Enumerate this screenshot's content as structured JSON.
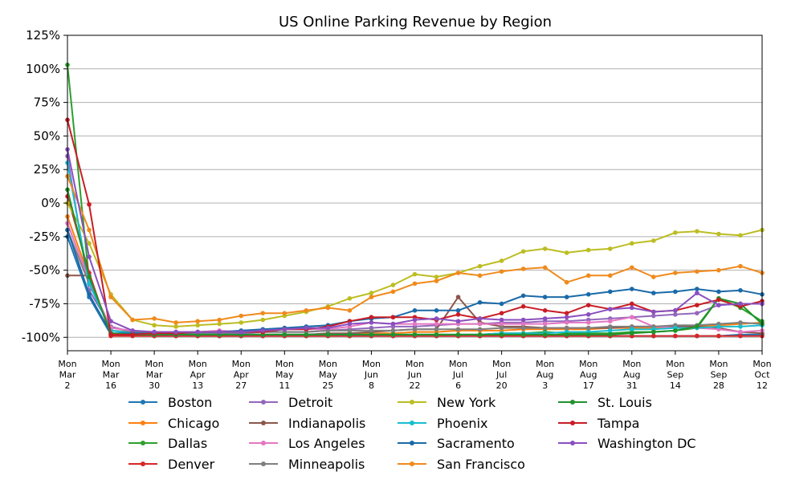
{
  "chart_data": {
    "type": "line",
    "title": "US Online Parking Revenue by Region",
    "xlabel": "",
    "ylabel": "",
    "ylim": [
      -110,
      125
    ],
    "yticks": [
      "125%",
      "100%",
      "75%",
      "50%",
      "25%",
      "0%",
      "-25%",
      "-50%",
      "-75%",
      "-100%"
    ],
    "ytick_values": [
      125,
      100,
      75,
      50,
      25,
      0,
      -25,
      -50,
      -75,
      -100
    ],
    "grid": "horizontal",
    "legend_position": "bottom",
    "xticks": [
      {
        "week": 0,
        "lines": [
          "Mon",
          "Mar",
          "2"
        ]
      },
      {
        "week": 2,
        "lines": [
          "Mon",
          "Mar",
          "16"
        ]
      },
      {
        "week": 4,
        "lines": [
          "Mon",
          "Mar",
          "30"
        ]
      },
      {
        "week": 6,
        "lines": [
          "Mon",
          "Apr",
          "13"
        ]
      },
      {
        "week": 8,
        "lines": [
          "Mon",
          "Apr",
          "27"
        ]
      },
      {
        "week": 10,
        "lines": [
          "Mon",
          "May",
          "11"
        ]
      },
      {
        "week": 12,
        "lines": [
          "Mon",
          "May",
          "25"
        ]
      },
      {
        "week": 14,
        "lines": [
          "Mon",
          "Jun",
          "8"
        ]
      },
      {
        "week": 16,
        "lines": [
          "Mon",
          "Jun",
          "22"
        ]
      },
      {
        "week": 18,
        "lines": [
          "Mon",
          "Jul",
          "6"
        ]
      },
      {
        "week": 20,
        "lines": [
          "Mon",
          "Jul",
          "20"
        ]
      },
      {
        "week": 22,
        "lines": [
          "Mon",
          "Aug",
          "3"
        ]
      },
      {
        "week": 24,
        "lines": [
          "Mon",
          "Aug",
          "17"
        ]
      },
      {
        "week": 26,
        "lines": [
          "Mon",
          "Aug",
          "31"
        ]
      },
      {
        "week": 28,
        "lines": [
          "Mon",
          "Sep",
          "14"
        ]
      },
      {
        "week": 30,
        "lines": [
          "Mon",
          "Sep",
          "28"
        ]
      },
      {
        "week": 32,
        "lines": [
          "Mon",
          "Oct",
          "12"
        ]
      }
    ],
    "x": [
      "2020-03-02",
      "2020-03-09",
      "2020-03-16",
      "2020-03-23",
      "2020-03-30",
      "2020-04-06",
      "2020-04-13",
      "2020-04-20",
      "2020-04-27",
      "2020-05-04",
      "2020-05-11",
      "2020-05-18",
      "2020-05-25",
      "2020-06-01",
      "2020-06-08",
      "2020-06-15",
      "2020-06-22",
      "2020-06-29",
      "2020-07-06",
      "2020-07-13",
      "2020-07-20",
      "2020-07-27",
      "2020-08-03",
      "2020-08-10",
      "2020-08-17",
      "2020-08-24",
      "2020-08-31",
      "2020-09-07",
      "2020-09-14",
      "2020-09-21",
      "2020-09-28",
      "2020-10-05",
      "2020-10-12"
    ],
    "series": [
      {
        "name": "Boston",
        "color": "#1f77b4",
        "values": [
          -25,
          -70,
          -98,
          -98,
          -99,
          -99,
          -99,
          -99,
          -99,
          -99,
          -99,
          -99,
          -99,
          -99,
          -99,
          -99,
          -99,
          -99,
          -99,
          -99,
          -99,
          -99,
          -99,
          -99,
          -99,
          -99,
          -99,
          -99,
          -99,
          -99,
          -99,
          -98,
          -98
        ]
      },
      {
        "name": "Chicago",
        "color": "#ff7f0e",
        "values": [
          -10,
          -55,
          -97,
          -98,
          -98,
          -98,
          -98,
          -98,
          -98,
          -98,
          -98,
          -98,
          -98,
          -97,
          -97,
          -97,
          -96,
          -96,
          -95,
          -95,
          -95,
          -94,
          -94,
          -94,
          -94,
          -93,
          -93,
          -93,
          -92,
          -92,
          -91,
          -90,
          -89
        ]
      },
      {
        "name": "Dallas",
        "color": "#2ca02c",
        "values": [
          103,
          -57,
          -97,
          -98,
          -98,
          -98,
          -98,
          -98,
          -98,
          -98,
          -98,
          -98,
          -98,
          -98,
          -98,
          -98,
          -98,
          -98,
          -98,
          -98,
          -97,
          -97,
          -96,
          -97,
          -97,
          -97,
          -96,
          -96,
          -95,
          -93,
          -71,
          -78,
          -88
        ]
      },
      {
        "name": "Denver",
        "color": "#d62728",
        "values": [
          5,
          -52,
          -99,
          -99,
          -99,
          -99,
          -99,
          -99,
          -99,
          -99,
          -99,
          -99,
          -99,
          -99,
          -99,
          -99,
          -99,
          -99,
          -99,
          -99,
          -99,
          -99,
          -99,
          -99,
          -99,
          -99,
          -99,
          -99,
          -99,
          -99,
          -99,
          -99,
          -99
        ]
      },
      {
        "name": "Detroit",
        "color": "#9467bd",
        "values": [
          35,
          -65,
          -92,
          -96,
          -97,
          -97,
          -97,
          -97,
          -97,
          -96,
          -96,
          -96,
          -95,
          -94,
          -93,
          -92,
          -92,
          -91,
          -90,
          -90,
          -89,
          -89,
          -88,
          -88,
          -87,
          -86,
          -85,
          -84,
          -83,
          -82,
          -76,
          -75,
          -75
        ]
      },
      {
        "name": "Indianapolis",
        "color": "#8c564b",
        "values": [
          -54,
          -54,
          -97,
          -98,
          -98,
          -98,
          -98,
          -98,
          -98,
          -98,
          -98,
          -98,
          -97,
          -97,
          -96,
          -95,
          -94,
          -94,
          -70,
          -89,
          -92,
          -92,
          -93,
          -93,
          -93,
          -93,
          -92,
          -92,
          -92,
          -92,
          -93,
          -96,
          -97
        ]
      },
      {
        "name": "Los Angeles",
        "color": "#e377c2",
        "values": [
          -15,
          -58,
          -93,
          -95,
          -96,
          -96,
          -96,
          -95,
          -96,
          -95,
          -94,
          -94,
          -94,
          -92,
          -89,
          -90,
          -90,
          -90,
          -90,
          -90,
          -90,
          -90,
          -90,
          -89,
          -89,
          -88,
          -85,
          -92,
          -93,
          -93,
          -94,
          -96,
          -95
        ]
      },
      {
        "name": "Minneapolis",
        "color": "#7f7f7f",
        "values": [
          -20,
          -60,
          -95,
          -96,
          -97,
          -97,
          -97,
          -97,
          -96,
          -96,
          -96,
          -96,
          -95,
          -95,
          -95,
          -95,
          -94,
          -94,
          -94,
          -94,
          -93,
          -93,
          -93,
          -93,
          -93,
          -92,
          -92,
          -92,
          -91,
          -91,
          -90,
          -89,
          -90
        ]
      },
      {
        "name": "New York",
        "color": "#bcbd22",
        "values": [
          0,
          -30,
          -68,
          -87,
          -91,
          -92,
          -91,
          -90,
          -89,
          -87,
          -84,
          -81,
          -77,
          -71,
          -67,
          -61,
          -53,
          -55,
          -52,
          -47,
          -43,
          -36,
          -34,
          -37,
          -35,
          -34,
          -30,
          -28,
          -22,
          -21,
          -23,
          -24,
          -20
        ]
      },
      {
        "name": "Phoenix",
        "color": "#17becf",
        "values": [
          30,
          -60,
          -95,
          -97,
          -98,
          -98,
          -98,
          -98,
          -98,
          -98,
          -98,
          -98,
          -98,
          -98,
          -98,
          -98,
          -98,
          -98,
          -98,
          -98,
          -97,
          -97,
          -97,
          -96,
          -96,
          -95,
          -94,
          -94,
          -93,
          -93,
          -92,
          -92,
          -91
        ]
      },
      {
        "name": "Sacramento",
        "color": "#1a6aa8",
        "values": [
          -20,
          -68,
          -97,
          -97,
          -97,
          -97,
          -96,
          -96,
          -95,
          -94,
          -93,
          -92,
          -91,
          -88,
          -86,
          -85,
          -80,
          -80,
          -80,
          -74,
          -75,
          -69,
          -70,
          -70,
          -68,
          -66,
          -64,
          -67,
          -66,
          -64,
          -66,
          -65,
          -68
        ]
      },
      {
        "name": "San Francisco",
        "color": "#f08a1c",
        "values": [
          20,
          -20,
          -70,
          -87,
          -86,
          -89,
          -88,
          -87,
          -84,
          -82,
          -82,
          -80,
          -78,
          -80,
          -70,
          -66,
          -60,
          -58,
          -52,
          -54,
          -51,
          -49,
          -48,
          -59,
          -54,
          -54,
          -48,
          -55,
          -52,
          -51,
          -50,
          -47,
          -52
        ]
      },
      {
        "name": "St. Louis",
        "color": "#21922c",
        "values": [
          10,
          -55,
          -97,
          -98,
          -98,
          -98,
          -98,
          -98,
          -98,
          -98,
          -98,
          -98,
          -98,
          -98,
          -98,
          -98,
          -98,
          -98,
          -98,
          -98,
          -98,
          -98,
          -98,
          -98,
          -98,
          -98,
          -97,
          -96,
          -95,
          -92,
          -71,
          -75,
          -90
        ]
      },
      {
        "name": "Tampa",
        "color": "#c81d25",
        "values": [
          62,
          -1,
          -98,
          -98,
          -97,
          -97,
          -96,
          -96,
          -96,
          -96,
          -94,
          -94,
          -92,
          -88,
          -85,
          -85,
          -85,
          -87,
          -83,
          -86,
          -82,
          -77,
          -80,
          -82,
          -76,
          -79,
          -75,
          -81,
          -80,
          -76,
          -72,
          -77,
          -73
        ]
      },
      {
        "name": "Washington DC",
        "color": "#8a4fbf",
        "values": [
          40,
          -40,
          -88,
          -95,
          -96,
          -96,
          -96,
          -96,
          -96,
          -95,
          -94,
          -93,
          -93,
          -90,
          -89,
          -90,
          -87,
          -86,
          -88,
          -86,
          -87,
          -87,
          -86,
          -85,
          -83,
          -79,
          -78,
          -81,
          -80,
          -67,
          -76,
          -75,
          -75
        ]
      }
    ]
  }
}
